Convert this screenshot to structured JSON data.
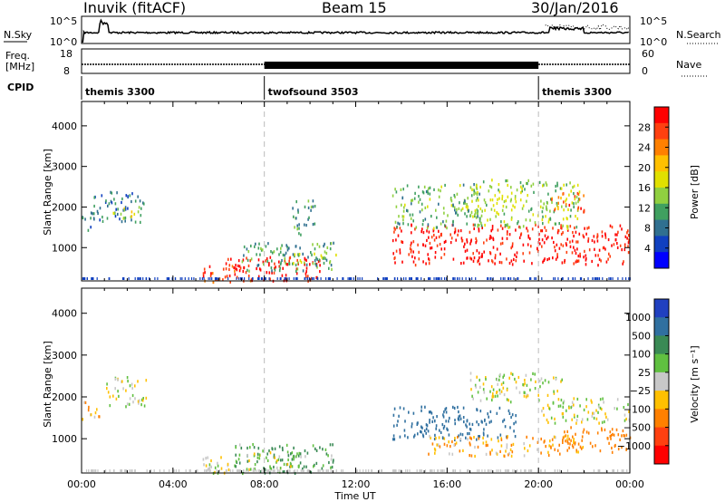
{
  "header": {
    "station": "Inuvik (fitACF)",
    "beam": "Beam 15",
    "date": "30/Jan/2016"
  },
  "top_panels": {
    "nsky_label": "N.Sky",
    "nsearch_label": "N.Search",
    "nsky_ticks": [
      "10^5",
      "10^0"
    ],
    "nsearch_ticks": [
      "10^5",
      "10^0"
    ],
    "freq_label": "Freq.",
    "freq_unit": "[MHz]",
    "freq_ticks": [
      "18",
      "8"
    ],
    "nave_label": "Nave",
    "nave_ticks": [
      "60",
      "0"
    ],
    "cpid_label": "CPID",
    "cpid_segments": [
      {
        "name": "themis 3300",
        "start_h": 0,
        "end_h": 8
      },
      {
        "name": "twofsound 3503",
        "start_h": 8,
        "end_h": 20
      },
      {
        "name": "themis 3300",
        "start_h": 20,
        "end_h": 24
      }
    ]
  },
  "power_colorbar": {
    "label": "Power [dB]",
    "ticks": [
      "28",
      "24",
      "20",
      "16",
      "12",
      "8",
      "4"
    ],
    "colors": [
      "#ff0000",
      "#ff4010",
      "#ff8000",
      "#ffc000",
      "#e0e000",
      "#90d040",
      "#40a060",
      "#307090",
      "#1040c0",
      "#0000ff"
    ]
  },
  "velocity_colorbar": {
    "label": "Velocity [m s⁻¹]",
    "ticks": [
      "1000",
      "500",
      "100",
      "25",
      "−25",
      "−100",
      "−500",
      "−1000"
    ],
    "colors": [
      "#2040c0",
      "#3070a0",
      "#3a8a55",
      "#60c040",
      "#c8c8c8",
      "#ffc000",
      "#ff8000",
      "#ff4010",
      "#ff0000"
    ]
  },
  "chart_data": [
    {
      "type": "heatmap",
      "title": "",
      "xlabel": "Time UT",
      "ylabel": "Slant Range [km]",
      "x_ticks": [
        "00:00",
        "04:00",
        "08:00",
        "12:00",
        "16:00",
        "20:00",
        "00:00"
      ],
      "y_ticks": [
        "1000",
        "2000",
        "3000",
        "4000"
      ],
      "ylim": [
        180,
        4600
      ],
      "xlim_hours": [
        0,
        24
      ],
      "colorbar": "Power [dB]",
      "blobs": [
        {
          "t0": 0.0,
          "t1": 0.6,
          "r0": 1450,
          "r1": 1900,
          "value": 8
        },
        {
          "t0": 0.5,
          "t1": 2.7,
          "r0": 1650,
          "r1": 2400,
          "value": 8
        },
        {
          "t0": 1.3,
          "t1": 2.6,
          "r0": 1750,
          "r1": 2050,
          "value": 16
        },
        {
          "t0": 5.3,
          "t1": 7.5,
          "r0": 180,
          "r1": 600,
          "value": 26
        },
        {
          "t0": 6.3,
          "t1": 10.5,
          "r0": 200,
          "r1": 800,
          "value": 28
        },
        {
          "t0": 7.0,
          "t1": 11.0,
          "r0": 450,
          "r1": 1150,
          "value": 10
        },
        {
          "t0": 9.0,
          "t1": 11.2,
          "r0": 600,
          "r1": 900,
          "value": 14
        },
        {
          "t0": 9.2,
          "t1": 10.2,
          "r0": 1350,
          "r1": 2200,
          "value": 10
        },
        {
          "t0": 13.6,
          "t1": 24.0,
          "r0": 600,
          "r1": 1600,
          "value": 28
        },
        {
          "t0": 13.6,
          "t1": 17.5,
          "r0": 1500,
          "r1": 2600,
          "value": 12
        },
        {
          "t0": 17.0,
          "t1": 21.8,
          "r0": 1500,
          "r1": 2700,
          "value": 14
        },
        {
          "t0": 20.5,
          "t1": 22.0,
          "r0": 1900,
          "r1": 2400,
          "value": 24
        }
      ]
    },
    {
      "type": "heatmap",
      "title": "",
      "xlabel": "Time UT",
      "ylabel": "Slant Range [km]",
      "x_ticks": [
        "00:00",
        "04:00",
        "08:00",
        "12:00",
        "16:00",
        "20:00",
        "00:00"
      ],
      "y_ticks": [
        "1000",
        "2000",
        "3000",
        "4000"
      ],
      "ylim": [
        180,
        4600
      ],
      "xlim_hours": [
        0,
        24
      ],
      "colorbar": "Velocity [m s⁻¹]",
      "blobs": [
        {
          "t0": 0.0,
          "t1": 0.8,
          "r0": 1450,
          "r1": 1900,
          "value": -100
        },
        {
          "t0": 1.0,
          "t1": 2.8,
          "r0": 1800,
          "r1": 2500,
          "value": 0
        },
        {
          "t0": 5.3,
          "t1": 7.5,
          "r0": 200,
          "r1": 600,
          "value": 0
        },
        {
          "t0": 6.5,
          "t1": 11.0,
          "r0": 200,
          "r1": 900,
          "value": 100
        },
        {
          "t0": 7.5,
          "t1": 9.5,
          "r0": 300,
          "r1": 700,
          "value": 0
        },
        {
          "t0": 13.6,
          "t1": 19.0,
          "r0": 1000,
          "r1": 1800,
          "value": 700
        },
        {
          "t0": 15.0,
          "t1": 22.0,
          "r0": 600,
          "r1": 1100,
          "value": -100
        },
        {
          "t0": 20.0,
          "t1": 24.0,
          "r0": 1400,
          "r1": 2000,
          "value": 0
        },
        {
          "t0": 21.0,
          "t1": 24.0,
          "r0": 700,
          "r1": 1300,
          "value": -200
        },
        {
          "t0": 17.0,
          "t1": 21.0,
          "r0": 1900,
          "r1": 2600,
          "value": 0
        }
      ]
    }
  ]
}
